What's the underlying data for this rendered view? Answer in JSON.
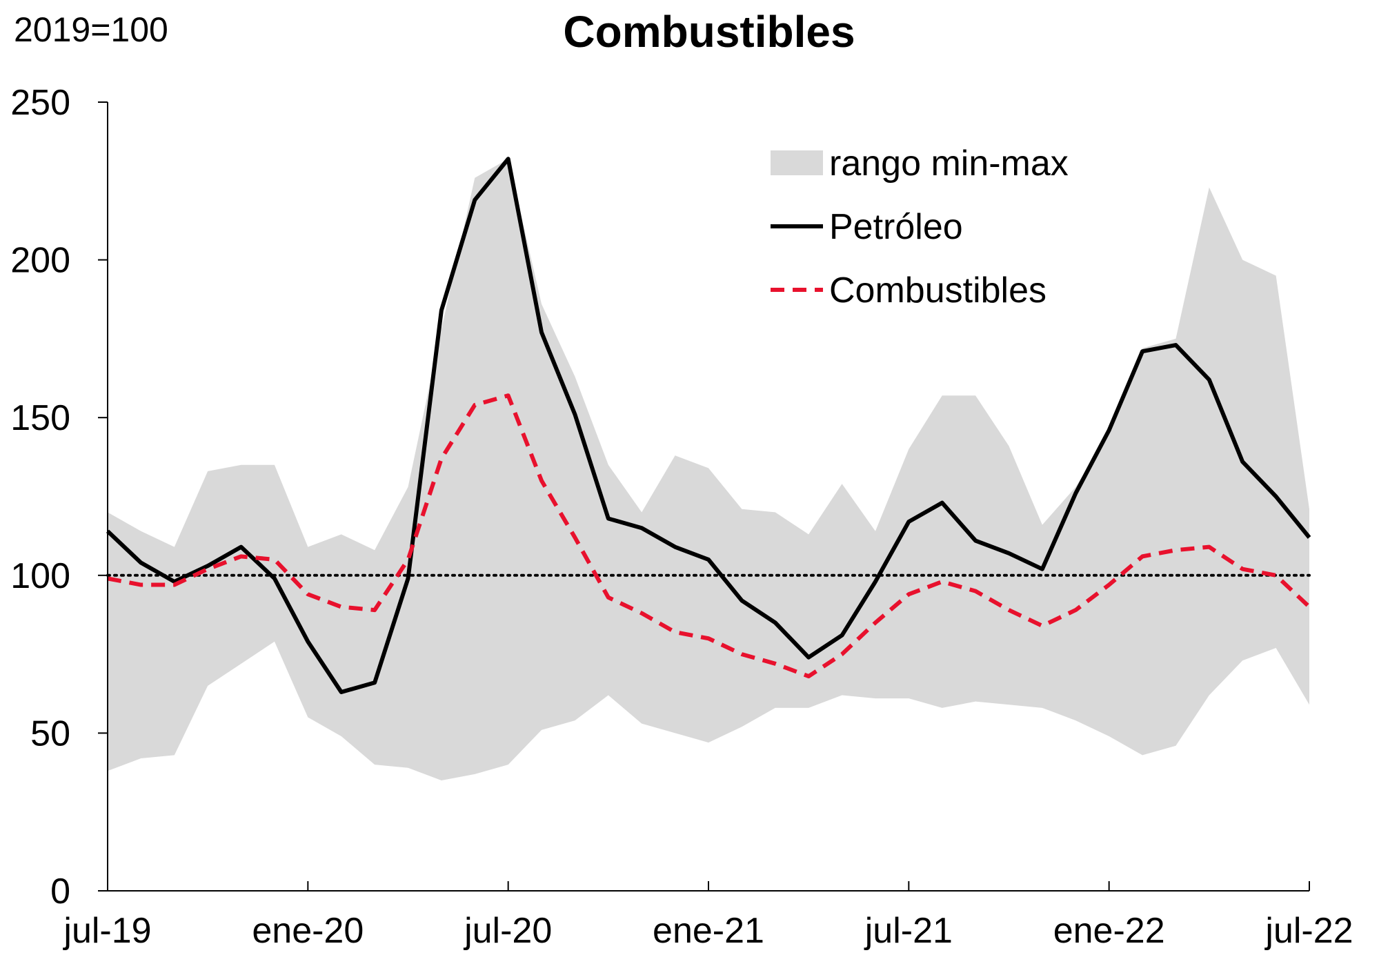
{
  "chart_data": {
    "type": "line",
    "title": "Combustibles",
    "unit_label": "2019=100",
    "xlabel": "",
    "ylabel": "",
    "ylim": [
      0,
      250
    ],
    "y_ticks": [
      "0",
      "50",
      "100",
      "150",
      "200",
      "250"
    ],
    "y_tick_values": [
      0,
      50,
      100,
      150,
      200,
      250
    ],
    "x_tick_labels": [
      "jul-19",
      "ene-20",
      "jul-20",
      "ene-21",
      "jul-21",
      "ene-22",
      "jul-22"
    ],
    "x_tick_indices": [
      0,
      6,
      12,
      18,
      24,
      30,
      36
    ],
    "categories": [
      "jul-19",
      "ago-19",
      "sep-19",
      "oct-19",
      "nov-19",
      "dic-19",
      "ene-20",
      "feb-20",
      "mar-20",
      "abr-20",
      "may-20",
      "jun-20",
      "jul-20",
      "ago-20",
      "sep-20",
      "oct-20",
      "nov-20",
      "dic-20",
      "ene-21",
      "feb-21",
      "mar-21",
      "abr-21",
      "may-21",
      "jun-21",
      "jul-21",
      "ago-21",
      "sep-21",
      "oct-21",
      "nov-21",
      "dic-21",
      "ene-22",
      "feb-22",
      "mar-22",
      "abr-22",
      "may-22",
      "jun-22",
      "jul-22"
    ],
    "reference_line": 100,
    "grid": false,
    "legend_position": "top-right",
    "series": [
      {
        "name": "rango min-max",
        "kind": "band",
        "color": "#d9d9d9",
        "lower": [
          38,
          42,
          43,
          65,
          72,
          79,
          55,
          49,
          40,
          39,
          35,
          37,
          40,
          51,
          54,
          62,
          53,
          50,
          47,
          52,
          58,
          58,
          62,
          61,
          61,
          58,
          60,
          59,
          58,
          54,
          49,
          43,
          46,
          62,
          73,
          77,
          59
        ],
        "upper": [
          120,
          114,
          109,
          133,
          135,
          135,
          109,
          113,
          108,
          128,
          178,
          226,
          232,
          186,
          163,
          135,
          120,
          138,
          134,
          121,
          120,
          113,
          129,
          114,
          140,
          157,
          157,
          141,
          116,
          128,
          145,
          172,
          175,
          223,
          200,
          195,
          121
        ]
      },
      {
        "name": "Petróleo",
        "kind": "line",
        "color": "#000000",
        "values": [
          114,
          104,
          98,
          103,
          109,
          99,
          79,
          63,
          66,
          99,
          184,
          219,
          232,
          177,
          151,
          118,
          115,
          109,
          105,
          92,
          85,
          74,
          81,
          98,
          117,
          123,
          111,
          107,
          102,
          126,
          146,
          171,
          173,
          162,
          136,
          125,
          112
        ]
      },
      {
        "name": "Combustibles",
        "kind": "dashed",
        "color": "#e8112d",
        "values": [
          99,
          97,
          97,
          102,
          106,
          105,
          94,
          90,
          89,
          105,
          137,
          154,
          157,
          130,
          112,
          93,
          88,
          82,
          80,
          75,
          72,
          68,
          75,
          85,
          94,
          98,
          95,
          89,
          84,
          89,
          97,
          106,
          108,
          109,
          102,
          100,
          90
        ]
      }
    ]
  }
}
